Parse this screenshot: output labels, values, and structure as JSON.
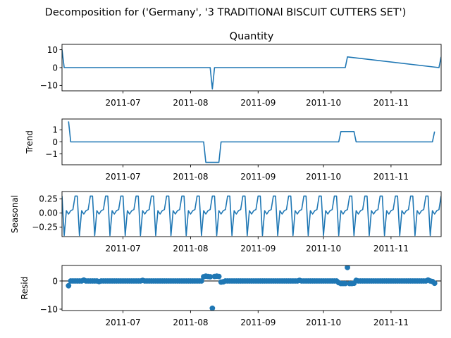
{
  "suptitle": "Decomposition for ('Germany', '3 TRADITIONAl BISCUIT CUTTERS  SET')",
  "color": "#1f77b4",
  "chart_data": [
    {
      "type": "line",
      "title": "Quantity",
      "ylabel": "",
      "xlim": [
        "2011-06-03",
        "2011-11-24"
      ],
      "ylim": [
        -13,
        13
      ],
      "yticks": [
        10,
        0,
        -10
      ],
      "ytick_labels": [
        "10",
        "0",
        "−10"
      ],
      "xticks": [
        "2011-07-01",
        "2011-08-01",
        "2011-09-01",
        "2011-10-01",
        "2011-11-01"
      ],
      "xtick_labels": [
        "2011-07",
        "2011-08",
        "2011-09",
        "2011-10",
        "2011-11"
      ],
      "x": [
        "2011-06-03",
        "2011-06-04",
        "2011-08-10",
        "2011-08-11",
        "2011-08-12",
        "2011-10-11",
        "2011-10-12",
        "2011-11-23",
        "2011-11-24"
      ],
      "y": [
        10,
        0,
        0,
        -12,
        0,
        0,
        6,
        0,
        6
      ]
    },
    {
      "type": "line",
      "title": "",
      "ylabel": "Trend",
      "xlim": [
        "2011-06-03",
        "2011-11-24"
      ],
      "ylim": [
        -1.9,
        1.9
      ],
      "yticks": [
        1,
        0,
        -1
      ],
      "ytick_labels": [
        "1",
        "0",
        "−1"
      ],
      "xticks": [
        "2011-07-01",
        "2011-08-01",
        "2011-09-01",
        "2011-10-01",
        "2011-11-01"
      ],
      "xtick_labels": [
        "2011-07",
        "2011-08",
        "2011-09",
        "2011-10",
        "2011-11"
      ],
      "x": [
        "2011-06-06",
        "2011-06-07",
        "2011-08-07",
        "2011-08-08",
        "2011-08-14",
        "2011-08-15",
        "2011-10-08",
        "2011-10-09",
        "2011-10-15",
        "2011-10-16",
        "2011-11-20",
        "2011-11-21"
      ],
      "y": [
        1.7,
        0,
        0,
        -1.7,
        -1.7,
        0,
        0,
        0.86,
        0.86,
        0,
        0,
        0.86
      ]
    },
    {
      "type": "line",
      "title": "",
      "ylabel": "Seasonal",
      "xlim": [
        "2011-06-03",
        "2011-11-24"
      ],
      "ylim": [
        -0.42,
        0.38
      ],
      "yticks": [
        0.25,
        0,
        -0.25
      ],
      "ytick_labels": [
        "0.25",
        "0.00",
        "−0.25"
      ],
      "xticks": [
        "2011-07-01",
        "2011-08-01",
        "2011-09-01",
        "2011-10-01",
        "2011-11-01"
      ],
      "xtick_labels": [
        "2011-07",
        "2011-08",
        "2011-09",
        "2011-10",
        "2011-11"
      ],
      "start": "2011-06-03",
      "period_days": 7,
      "pattern": [
        0.3,
        -0.4,
        0.04,
        -0.02,
        0.04,
        0.06,
        0.3
      ],
      "y": []
    },
    {
      "type": "scatter",
      "title": "",
      "ylabel": "Resid",
      "xlim": [
        "2011-06-03",
        "2011-11-24"
      ],
      "ylim": [
        -10.5,
        5.5
      ],
      "yticks": [
        0,
        -10
      ],
      "ytick_labels": [
        "0",
        "−10"
      ],
      "xticks": [
        "2011-07-01",
        "2011-08-01",
        "2011-09-01",
        "2011-10-01",
        "2011-11-01"
      ],
      "xtick_labels": [
        "2011-07",
        "2011-08",
        "2011-09",
        "2011-10",
        "2011-11"
      ],
      "baseline": 0,
      "start": "2011-06-06",
      "end": "2011-11-21",
      "default": 0,
      "points": {
        "2011-06-06": -1.7,
        "2011-06-13": 0.3,
        "2011-06-20": -0.2,
        "2011-07-10": 0.2,
        "2011-08-07": 1.5,
        "2011-08-08": 1.7,
        "2011-08-09": 1.6,
        "2011-08-10": 1.5,
        "2011-08-11": -9.7,
        "2011-08-12": 1.6,
        "2011-08-13": 1.7,
        "2011-08-14": 1.6,
        "2011-08-15": -0.4,
        "2011-08-16": -0.3,
        "2011-09-20": 0.2,
        "2011-10-08": -0.6,
        "2011-10-09": -0.9,
        "2011-10-10": -0.9,
        "2011-10-11": -0.9,
        "2011-10-12": 4.8,
        "2011-10-13": -0.9,
        "2011-10-14": -0.9,
        "2011-10-15": -0.8,
        "2011-10-16": 0.2,
        "2011-11-18": 0.3,
        "2011-11-20": -0.2,
        "2011-11-21": -0.8
      }
    }
  ]
}
